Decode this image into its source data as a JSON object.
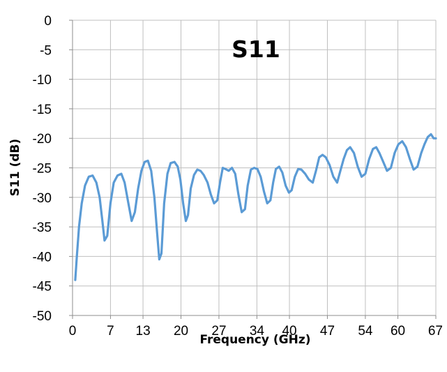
{
  "chart_data": {
    "type": "line",
    "title": "S11",
    "xlabel": "Frequency  (GHz)",
    "ylabel": "S11 (dB)",
    "xlim": [
      0,
      67
    ],
    "ylim": [
      -50,
      0
    ],
    "x_ticks": [
      0,
      7,
      13,
      20,
      27,
      34,
      40,
      47,
      54,
      60,
      67
    ],
    "x_tick_labels": [
      "0",
      "7",
      "13",
      "20",
      "27",
      "34",
      "40",
      "47",
      "54",
      "60",
      "67"
    ],
    "y_ticks": [
      0,
      -5,
      -10,
      -15,
      -20,
      -25,
      -30,
      -35,
      -40,
      -45,
      -50
    ],
    "y_tick_labels": [
      "0",
      "-5",
      "-10",
      "-15",
      "-20",
      "-25",
      "-30",
      "-35",
      "-40",
      "-45",
      "-50"
    ],
    "grid": true,
    "legend": "none",
    "series": [
      {
        "color": "#5b9bd5",
        "x": [
          0.5,
          0.8,
          1.2,
          1.7,
          2.3,
          3.0,
          3.7,
          4.4,
          5.0,
          5.5,
          5.9,
          6.4,
          7.0,
          7.6,
          8.3,
          9.0,
          9.6,
          10.3,
          10.9,
          11.5,
          12.1,
          12.7,
          13.3,
          13.9,
          14.5,
          15.1,
          15.6,
          16.0,
          16.4,
          16.9,
          17.5,
          18.1,
          18.8,
          19.4,
          19.9,
          20.4,
          20.9,
          21.3,
          21.8,
          22.4,
          23.0,
          23.6,
          24.2,
          24.9,
          25.5,
          26.1,
          26.7,
          27.2,
          27.7,
          28.2,
          28.8,
          29.4,
          30.0,
          30.6,
          31.2,
          31.8,
          32.3,
          32.9,
          33.5,
          34.1,
          34.7,
          35.3,
          35.9,
          36.5,
          37.0,
          37.5,
          38.1,
          38.7,
          39.3,
          39.9,
          40.4,
          41.0,
          41.6,
          42.2,
          42.9,
          43.6,
          44.3,
          44.9,
          45.5,
          46.1,
          46.7,
          47.4,
          48.1,
          48.8,
          49.4,
          50.0,
          50.6,
          51.2,
          51.9,
          52.6,
          53.3,
          54.0,
          54.7,
          55.4,
          56.0,
          56.6,
          57.3,
          58.0,
          58.7,
          59.4,
          60.1,
          60.8,
          61.5,
          62.2,
          62.9,
          63.6,
          64.3,
          64.9,
          65.5,
          66.1,
          66.6,
          67.0
        ],
        "values": [
          -44.0,
          -40.0,
          -35.0,
          -31.0,
          -28.0,
          -26.5,
          -26.3,
          -27.5,
          -30.0,
          -34.0,
          -37.3,
          -36.5,
          -31.0,
          -27.5,
          -26.3,
          -26.0,
          -27.5,
          -31.0,
          -34.0,
          -32.5,
          -28.5,
          -25.5,
          -24.0,
          -23.8,
          -25.5,
          -30.0,
          -36.0,
          -40.5,
          -39.5,
          -31.0,
          -26.0,
          -24.2,
          -24.0,
          -24.8,
          -27.0,
          -31.0,
          -34.0,
          -33.0,
          -28.5,
          -26.2,
          -25.3,
          -25.5,
          -26.2,
          -27.5,
          -29.5,
          -31.0,
          -30.5,
          -27.5,
          -25.0,
          -25.2,
          -25.5,
          -25.0,
          -26.0,
          -29.5,
          -32.5,
          -32.0,
          -28.0,
          -25.3,
          -25.0,
          -25.2,
          -26.5,
          -29.0,
          -31.0,
          -30.5,
          -27.5,
          -25.2,
          -24.8,
          -25.8,
          -28.0,
          -29.2,
          -28.8,
          -26.5,
          -25.2,
          -25.3,
          -26.0,
          -27.0,
          -27.5,
          -25.5,
          -23.2,
          -22.8,
          -23.2,
          -24.5,
          -26.5,
          -27.5,
          -25.5,
          -23.5,
          -22.0,
          -21.5,
          -22.5,
          -24.8,
          -26.5,
          -26.0,
          -23.5,
          -21.8,
          -21.5,
          -22.5,
          -24.0,
          -25.5,
          -25.0,
          -22.5,
          -21.0,
          -20.5,
          -21.5,
          -23.5,
          -25.3,
          -24.8,
          -22.5,
          -21.0,
          -19.8,
          -19.3,
          -20.0,
          -20.0
        ]
      }
    ]
  }
}
